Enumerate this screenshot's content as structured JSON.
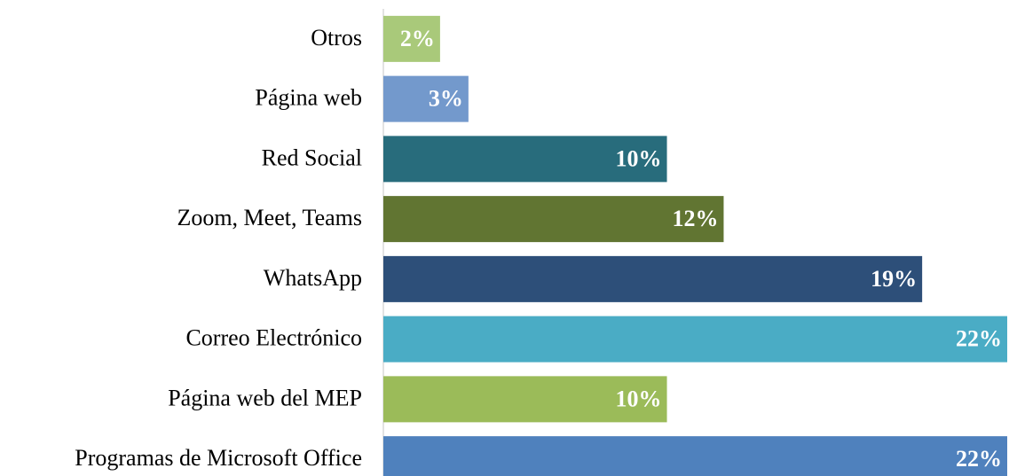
{
  "chart_data": {
    "type": "hbar",
    "categories": [
      "Otros",
      "Página web",
      "Red Social",
      "Zoom, Meet, Teams",
      "WhatsApp",
      "Correo Electrónico",
      "Página web del MEP",
      "Programas de Microsoft Office"
    ],
    "values": [
      2,
      3,
      10,
      12,
      19,
      22,
      10,
      22
    ],
    "value_labels": [
      "2%",
      "3%",
      "10%",
      "12%",
      "19%",
      "22%",
      "10%",
      "22%"
    ],
    "colors": [
      "#a9c97a",
      "#7399cc",
      "#286c7c",
      "#617532",
      "#2d4f79",
      "#4aacc5",
      "#9bbb59",
      "#4f81bd"
    ]
  }
}
